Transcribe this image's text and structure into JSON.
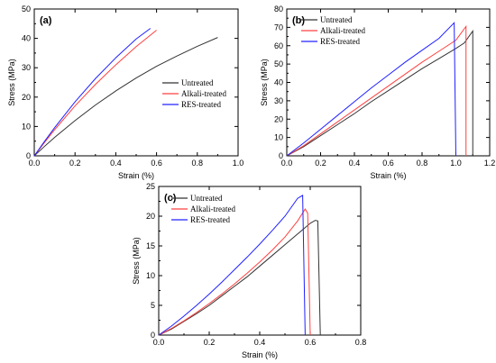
{
  "chart_data": [
    {
      "panel": "(a)",
      "type": "line",
      "xlabel": "Strain (%)",
      "ylabel": "Stress (MPa)",
      "xlim": [
        0.0,
        1.0
      ],
      "ylim": [
        0,
        50
      ],
      "xticks": [
        0.0,
        0.2,
        0.4,
        0.6,
        0.8,
        1.0
      ],
      "xtick_labels": [
        "0.0",
        "0.2",
        "0.4",
        "0.6",
        "0.8",
        "1.0"
      ],
      "yticks": [
        0,
        10,
        20,
        30,
        40,
        50
      ],
      "ytick_labels": [
        "0",
        "10",
        "20",
        "30",
        "40",
        "50"
      ],
      "legend": "center-right",
      "grid": false,
      "series": [
        {
          "name": "Untreated",
          "color": "#333333",
          "x": [
            0,
            0.05,
            0.1,
            0.2,
            0.3,
            0.4,
            0.5,
            0.6,
            0.7,
            0.8,
            0.9
          ],
          "y": [
            0,
            3.2,
            6.3,
            12.0,
            17.3,
            22.1,
            26.5,
            30.5,
            34.0,
            37.3,
            40.3
          ]
        },
        {
          "name": "Alkali-treated",
          "color": "#ff4040",
          "x": [
            0,
            0.05,
            0.1,
            0.2,
            0.3,
            0.4,
            0.5,
            0.6
          ],
          "y": [
            0,
            4.5,
            8.9,
            17.0,
            24.3,
            31.0,
            37.2,
            42.8
          ]
        },
        {
          "name": "RES-treated",
          "color": "#2020ff",
          "x": [
            0,
            0.05,
            0.1,
            0.2,
            0.3,
            0.4,
            0.5,
            0.57
          ],
          "y": [
            0,
            4.9,
            9.6,
            18.4,
            26.3,
            33.4,
            39.8,
            43.4
          ]
        }
      ]
    },
    {
      "panel": "(b)",
      "type": "line",
      "xlabel": "Strain (%)",
      "ylabel": "Stress (MPa)",
      "xlim": [
        0.0,
        1.2
      ],
      "ylim": [
        0,
        80
      ],
      "xticks": [
        0.0,
        0.2,
        0.4,
        0.6,
        0.8,
        1.0,
        1.2
      ],
      "xtick_labels": [
        "0.0",
        "0.2",
        "0.4",
        "0.6",
        "0.8",
        "1.0",
        "1.2"
      ],
      "yticks": [
        0,
        10,
        20,
        30,
        40,
        50,
        60,
        70,
        80
      ],
      "ytick_labels": [
        "0",
        "10",
        "20",
        "30",
        "40",
        "50",
        "60",
        "70",
        "80"
      ],
      "legend": "top-left",
      "grid": false,
      "series": [
        {
          "name": "Untreated",
          "color": "#333333",
          "x": [
            0,
            0.1,
            0.2,
            0.3,
            0.4,
            0.5,
            0.6,
            0.7,
            0.8,
            0.9,
            1.0,
            1.05,
            1.1,
            1.1
          ],
          "y": [
            0,
            5,
            11,
            17,
            23,
            29.5,
            35.5,
            41.5,
            47.5,
            53,
            58.5,
            61.5,
            68,
            0
          ]
        },
        {
          "name": "Alkali-treated",
          "color": "#ff4040",
          "x": [
            0,
            0.1,
            0.2,
            0.3,
            0.4,
            0.5,
            0.6,
            0.7,
            0.8,
            0.9,
            1.0,
            1.06,
            1.06
          ],
          "y": [
            0,
            5.5,
            12,
            18.5,
            25,
            31.5,
            38,
            44.5,
            51,
            57,
            63,
            70.5,
            0
          ]
        },
        {
          "name": "RES-treated",
          "color": "#2020ff",
          "x": [
            0,
            0.1,
            0.2,
            0.3,
            0.4,
            0.5,
            0.6,
            0.7,
            0.8,
            0.9,
            0.99,
            1.0
          ],
          "y": [
            0,
            7,
            14.5,
            22,
            29.5,
            37,
            44,
            51,
            57.5,
            64,
            72.5,
            0
          ]
        }
      ]
    },
    {
      "panel": "(c)",
      "type": "line",
      "xlabel": "Strain (%)",
      "ylabel": "Stress (MPa)",
      "xlim": [
        0.0,
        0.8
      ],
      "ylim": [
        0,
        25
      ],
      "xticks": [
        0.0,
        0.2,
        0.4,
        0.6,
        0.8
      ],
      "xtick_labels": [
        "0.0",
        "0.2",
        "0.4",
        "0.6",
        "0.8"
      ],
      "yticks": [
        0,
        5,
        10,
        15,
        20,
        25
      ],
      "ytick_labels": [
        "0",
        "5",
        "10",
        "15",
        "20",
        "25"
      ],
      "legend": "top-left",
      "grid": false,
      "series": [
        {
          "name": "Untreated",
          "color": "#333333",
          "x": [
            0,
            0.05,
            0.1,
            0.15,
            0.2,
            0.25,
            0.3,
            0.35,
            0.4,
            0.45,
            0.5,
            0.55,
            0.6,
            0.62,
            0.63,
            0.64
          ],
          "y": [
            0,
            1.0,
            2.3,
            3.6,
            5.0,
            6.6,
            8.2,
            9.8,
            11.6,
            13.4,
            15.2,
            17.0,
            18.8,
            19.3,
            19.2,
            0
          ]
        },
        {
          "name": "Alkali-treated",
          "color": "#ff4040",
          "x": [
            0,
            0.05,
            0.1,
            0.15,
            0.2,
            0.25,
            0.3,
            0.35,
            0.4,
            0.45,
            0.5,
            0.55,
            0.58,
            0.59,
            0.6
          ],
          "y": [
            0,
            1.1,
            2.4,
            3.8,
            5.3,
            6.9,
            8.6,
            10.4,
            12.3,
            14.3,
            16.5,
            19.2,
            21.2,
            20.5,
            0
          ]
        },
        {
          "name": "RES-treated",
          "color": "#2020ff",
          "x": [
            0,
            0.05,
            0.1,
            0.15,
            0.2,
            0.25,
            0.3,
            0.35,
            0.4,
            0.45,
            0.5,
            0.55,
            0.57,
            0.58
          ],
          "y": [
            0,
            1.5,
            3.2,
            5.0,
            6.9,
            8.9,
            11.0,
            13.1,
            15.3,
            17.6,
            20.0,
            23.0,
            23.5,
            0
          ]
        }
      ]
    }
  ]
}
